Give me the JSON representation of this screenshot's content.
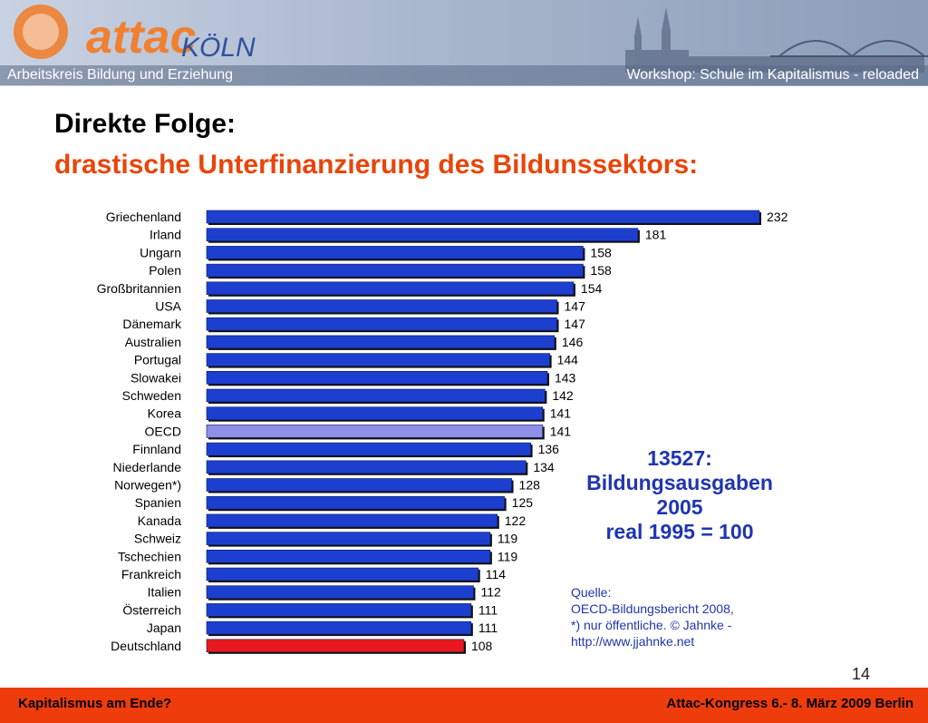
{
  "header": {
    "logo_text": "attac",
    "logo_city": "KÖLN",
    "left_caption": "Arbeitskreis Bildung und Erziehung",
    "right_caption": "Workshop: Schule im Kapitalismus - reloaded"
  },
  "title": {
    "line1": "Direkte Folge:",
    "line2": "drastische Unterfinanzierung des Bildunssektors:"
  },
  "annotation": {
    "lines": [
      "13527:",
      "Bildungsausgaben",
      "2005",
      "real 1995 = 100"
    ]
  },
  "source": {
    "lines": [
      "Quelle:",
      "OECD-Bildungsbericht 2008,",
      "*) nur öffentliche. © Jahnke -",
      "http://www.jjahnke.net"
    ]
  },
  "page_number": "14",
  "footer": {
    "left": "Kapitalismus am Ende?",
    "right": "Attac-Kongress 6.- 8. März 2009 Berlin"
  },
  "colors": {
    "bar_default": "#1d3fcf",
    "bar_oecd": "#8f8fe8",
    "bar_germany": "#e8181e",
    "title_accent": "#e8450a",
    "annotation": "#1f35b0",
    "footer_bg": "#ee3c0c"
  },
  "chart_data": {
    "type": "bar",
    "orientation": "horizontal",
    "categories": [
      "Griechenland",
      "Irland",
      "Ungarn",
      "Polen",
      "Großbritannien",
      "USA",
      "Dänemark",
      "Australien",
      "Portugal",
      "Slowakei",
      "Schweden",
      "Korea",
      "OECD",
      "Finnland",
      "Niederlande",
      "Norwegen*)",
      "Spanien",
      "Kanada",
      "Schweiz",
      "Tschechien",
      "Frankreich",
      "Italien",
      "Österreich",
      "Japan",
      "Deutschland"
    ],
    "values": [
      232,
      181,
      158,
      158,
      154,
      147,
      147,
      146,
      144,
      143,
      142,
      141,
      141,
      136,
      134,
      128,
      125,
      122,
      119,
      119,
      114,
      112,
      111,
      111,
      108
    ],
    "data_labels": true,
    "highlight": {
      "OECD": "bar_oecd",
      "Deutschland": "bar_germany"
    },
    "xlim": [
      0,
      232
    ],
    "grid": false,
    "legend": "none"
  }
}
